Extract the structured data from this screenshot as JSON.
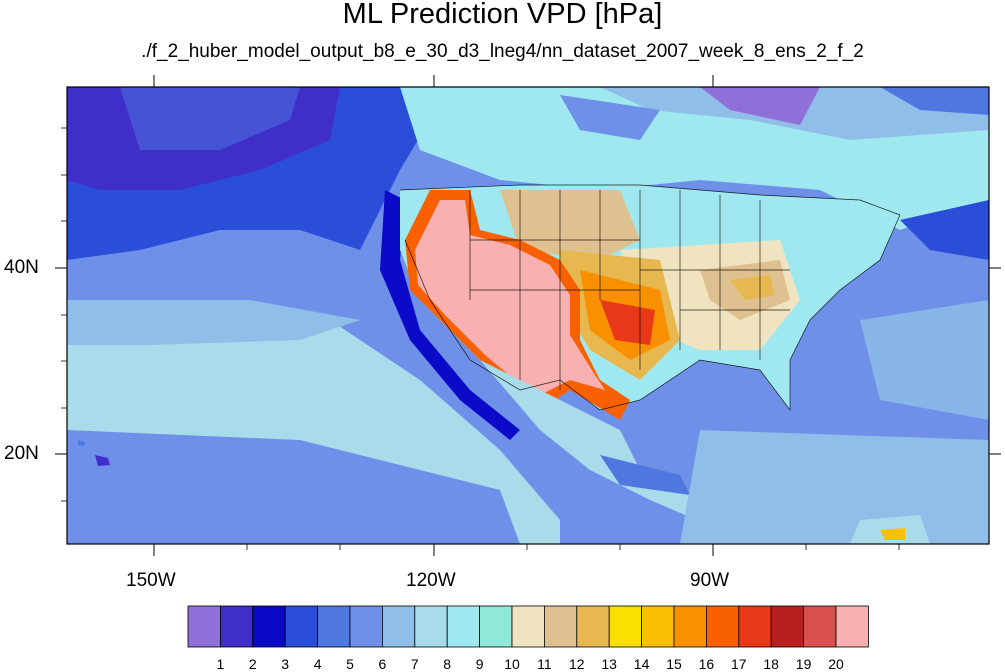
{
  "title": "ML Prediction VPD [hPa]",
  "subtitle": "./f_2_huber_model_output_b8_e_30_d3_lneg4/nn_dataset_2007_week_8_ens_2_f_2",
  "axes": {
    "lat_labels": [
      "40N",
      "20N"
    ],
    "lon_labels": [
      "150W",
      "120W",
      "90W"
    ]
  },
  "colorbar": {
    "labels": [
      "1",
      "2",
      "3",
      "4",
      "5",
      "6",
      "7",
      "8",
      "9",
      "10",
      "11",
      "12",
      "13",
      "14",
      "15",
      "16",
      "17",
      "18",
      "19",
      "20"
    ],
    "colors": [
      "#8f6fd8",
      "#3f2fc8",
      "#0a0ac8",
      "#2a4ed8",
      "#4e78e0",
      "#6e90e8",
      "#8fbfe8",
      "#a8dcea",
      "#a0e8f0",
      "#90e8d8",
      "#f0e4c0",
      "#dfc090",
      "#e8b850",
      "#f8e000",
      "#f8c000",
      "#f89000",
      "#f86000",
      "#e83818",
      "#b82020",
      "#d85050",
      "#f8b0b0"
    ]
  }
}
